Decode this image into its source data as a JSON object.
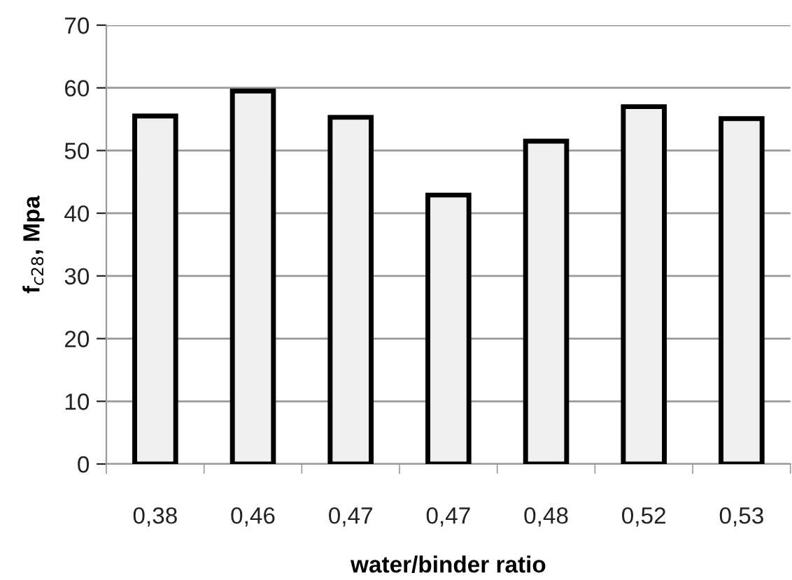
{
  "chart_data": {
    "type": "bar",
    "xlabel": "water/binder ratio",
    "ylabel": "f$_{c28}$, Mpa",
    "categories": [
      "0,38",
      "0,46",
      "0,47",
      "0,47",
      "0,48",
      "0,52",
      "0,53"
    ],
    "values": [
      55.5,
      59.5,
      55.3,
      42.9,
      51.5,
      57.0,
      55.1
    ],
    "color": "#f0f0f0",
    "ylim": [
      0,
      70
    ],
    "yticks": [
      0,
      10,
      20,
      30,
      40,
      50,
      60,
      70
    ],
    "grid": "y"
  }
}
